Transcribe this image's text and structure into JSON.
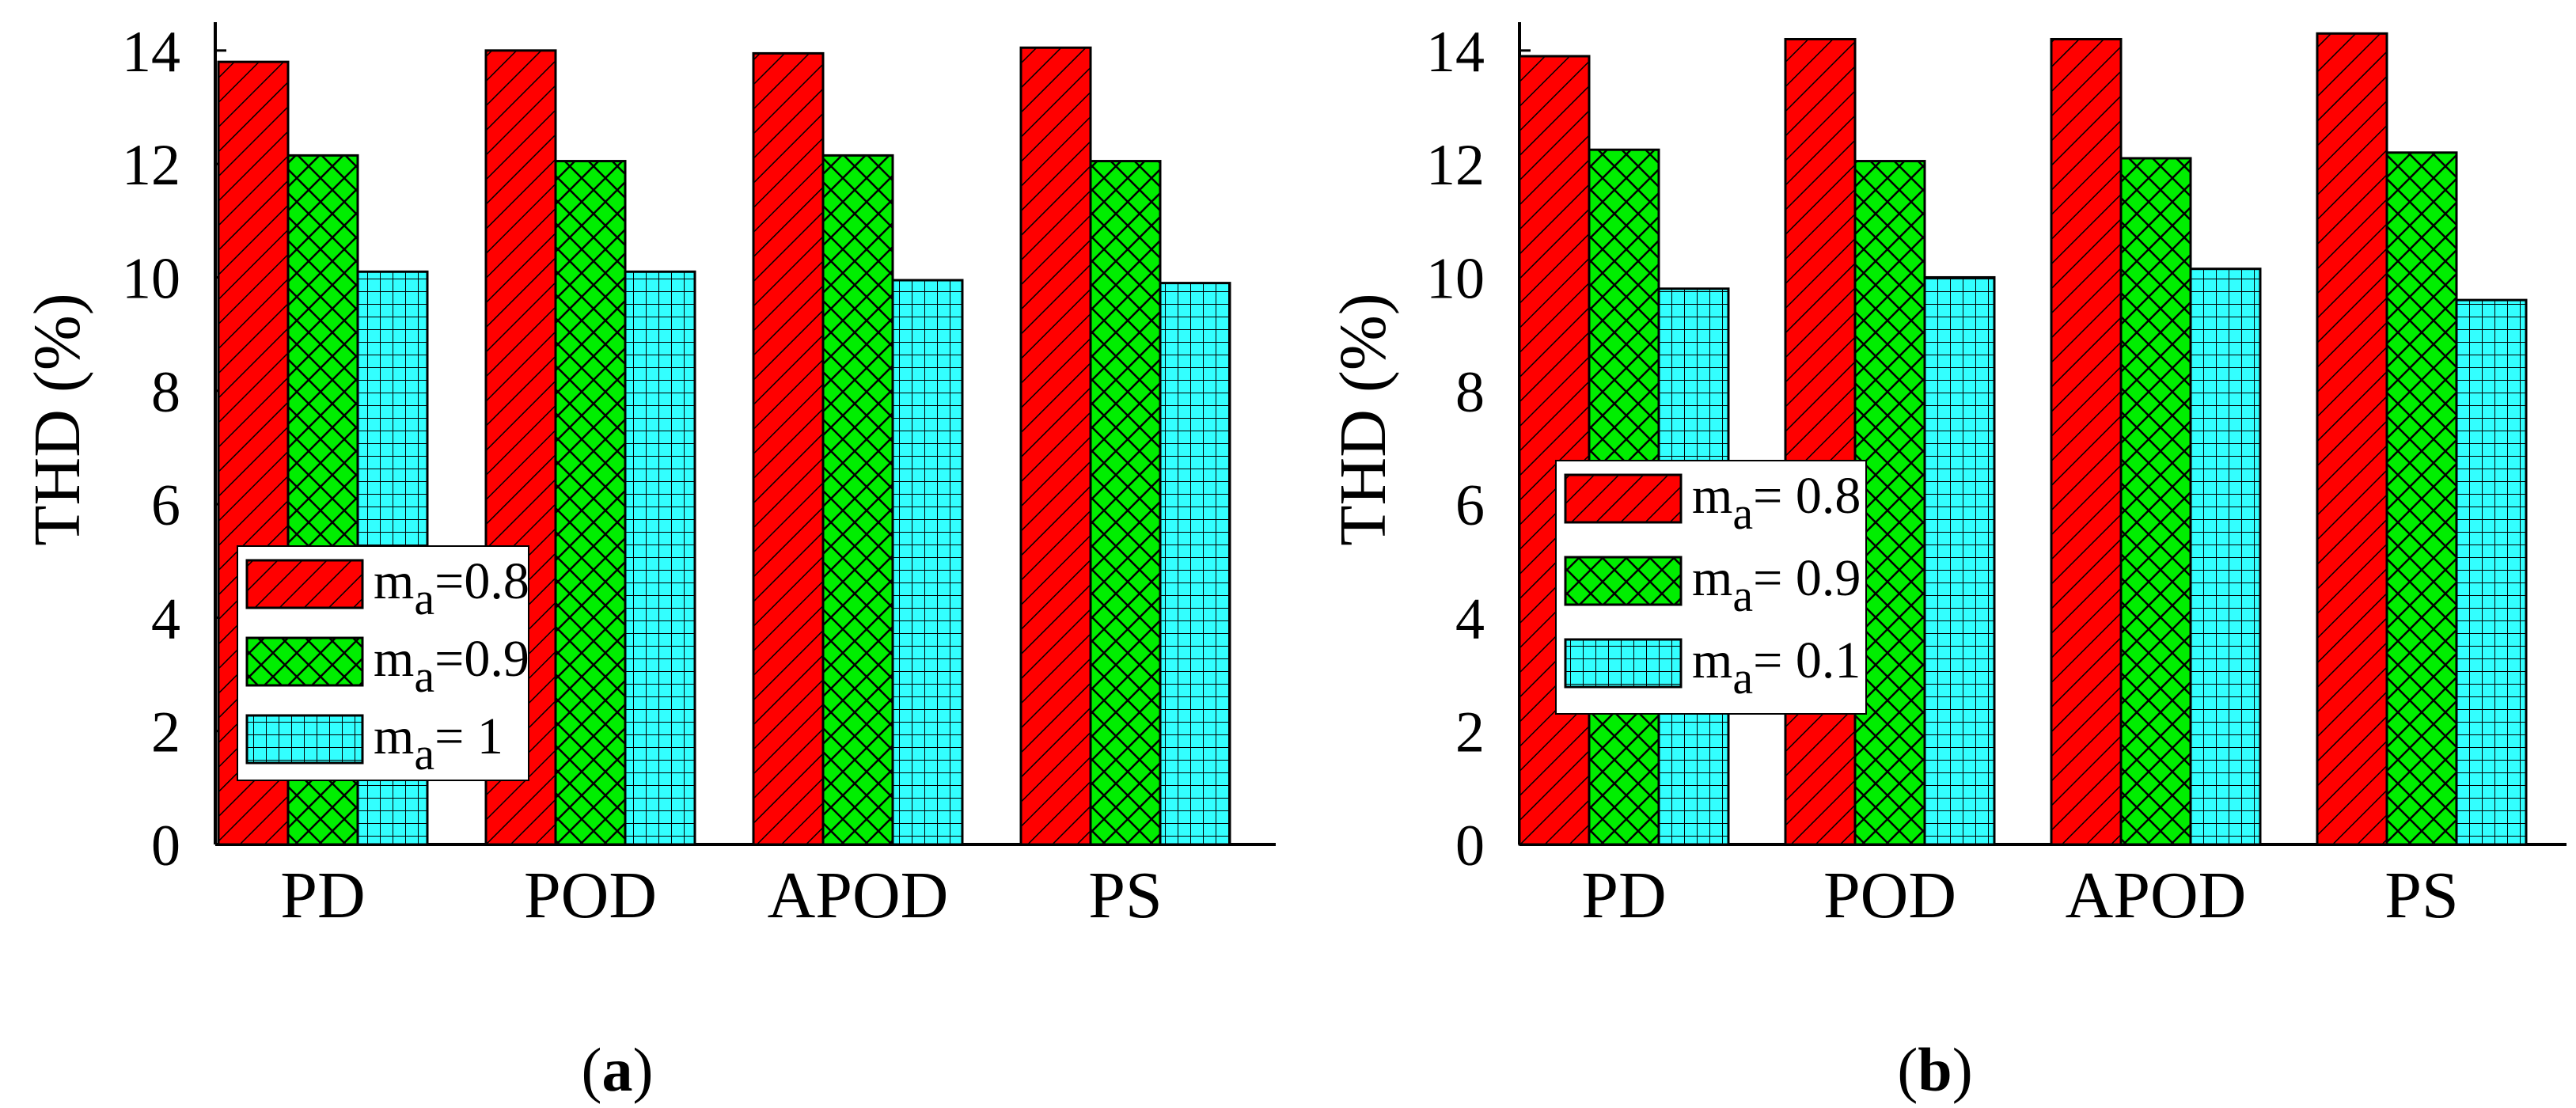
{
  "colors": {
    "series1": "#ff0000",
    "series2": "#00ee00",
    "series3": "#33ffff",
    "axis": "#000000"
  },
  "chart_data": [
    {
      "type": "bar",
      "panel_label": "a",
      "ylabel": "THD (%)",
      "xlabel": "",
      "ylim": [
        0,
        14.5
      ],
      "yticks": [
        "0",
        "2",
        "4",
        "6",
        "8",
        "10",
        "12",
        "14"
      ],
      "categories": [
        "PD",
        "POD",
        "APOD",
        "PS"
      ],
      "legend_position": "lower-left",
      "series": [
        {
          "name": "m=0.8",
          "legend_main": "m",
          "legend_sub": "a",
          "legend_rest": "=0.8",
          "pattern": "diagonal",
          "values": [
            13.8,
            14.0,
            13.95,
            14.05
          ]
        },
        {
          "name": "m=0.9",
          "legend_main": "m",
          "legend_sub": "a",
          "legend_rest": "=0.9",
          "pattern": "crosshatch",
          "values": [
            12.15,
            12.05,
            12.15,
            12.05
          ]
        },
        {
          "name": "m= 1",
          "legend_main": "m",
          "legend_sub": "a",
          "legend_rest": "= 1",
          "pattern": "grid",
          "values": [
            10.1,
            10.1,
            9.95,
            9.9
          ]
        }
      ]
    },
    {
      "type": "bar",
      "panel_label": "b",
      "ylabel": "THD (%)",
      "xlabel": "",
      "ylim": [
        0,
        14.5
      ],
      "yticks": [
        "0",
        "2",
        "4",
        "6",
        "8",
        "10",
        "12",
        "14"
      ],
      "categories": [
        "PD",
        "POD",
        "APOD",
        "PS"
      ],
      "legend_position": "middle-left",
      "series": [
        {
          "name": "m= 0.8",
          "legend_main": "m",
          "legend_sub": "a",
          "legend_rest": "= 0.8",
          "pattern": "diagonal",
          "values": [
            13.9,
            14.2,
            14.2,
            14.3
          ]
        },
        {
          "name": "m= 0.9",
          "legend_main": "m",
          "legend_sub": "a",
          "legend_rest": "= 0.9",
          "pattern": "crosshatch",
          "values": [
            12.25,
            12.05,
            12.1,
            12.2
          ]
        },
        {
          "name": "m= 0.1",
          "legend_main": "m",
          "legend_sub": "a",
          "legend_rest": "= 0.1",
          "pattern": "grid",
          "values": [
            9.8,
            10.0,
            10.15,
            9.6
          ]
        }
      ]
    }
  ]
}
